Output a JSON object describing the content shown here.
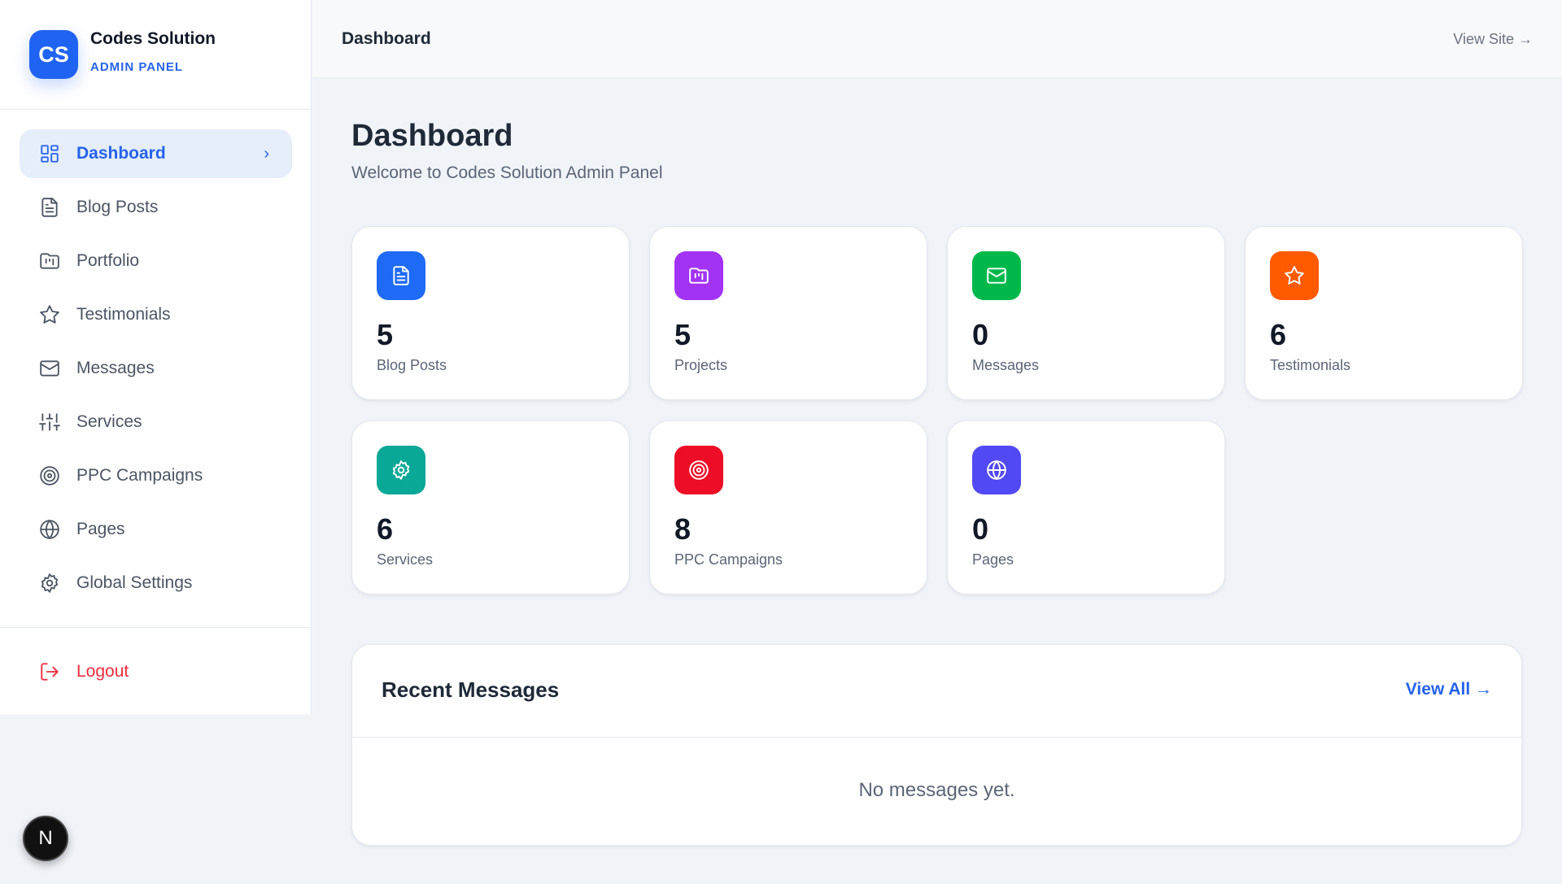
{
  "brand": {
    "logo": "CS",
    "name": "Codes Solution",
    "subtitle": "ADMIN PANEL",
    "color": "#1f63f2"
  },
  "nav": {
    "items": [
      {
        "label": "Dashboard",
        "icon": "grid-icon",
        "active": true
      },
      {
        "label": "Blog Posts",
        "icon": "file-text-icon"
      },
      {
        "label": "Portfolio",
        "icon": "folder-kanban-icon"
      },
      {
        "label": "Testimonials",
        "icon": "star-icon"
      },
      {
        "label": "Messages",
        "icon": "mail-icon"
      },
      {
        "label": "Services",
        "icon": "sliders-icon"
      },
      {
        "label": "PPC Campaigns",
        "icon": "target-icon"
      },
      {
        "label": "Pages",
        "icon": "globe-icon"
      },
      {
        "label": "Global Settings",
        "icon": "settings-icon"
      }
    ],
    "logout": "Logout"
  },
  "header": {
    "title": "Dashboard",
    "view_site": "View Site →"
  },
  "page": {
    "title": "Dashboard",
    "subtitle": "Welcome to Codes Solution Admin Panel"
  },
  "stats": [
    {
      "value": "5",
      "label": "Blog Posts",
      "color": "#1f6bf5",
      "icon": "file-text-icon"
    },
    {
      "value": "5",
      "label": "Projects",
      "color": "#a233f5",
      "icon": "folder-kanban-icon"
    },
    {
      "value": "0",
      "label": "Messages",
      "color": "#00b84a",
      "icon": "mail-icon"
    },
    {
      "value": "6",
      "label": "Testimonials",
      "color": "#ff5a00",
      "icon": "star-icon"
    },
    {
      "value": "6",
      "label": "Services",
      "color": "#0aa896",
      "icon": "settings-icon"
    },
    {
      "value": "8",
      "label": "PPC Campaigns",
      "color": "#ee0d26",
      "icon": "target-icon"
    },
    {
      "value": "0",
      "label": "Pages",
      "color": "#5249f5",
      "icon": "globe-icon"
    }
  ],
  "recent": {
    "title": "Recent Messages",
    "view_all": "View All →",
    "empty": "No messages yet."
  },
  "dev_badge": "N"
}
